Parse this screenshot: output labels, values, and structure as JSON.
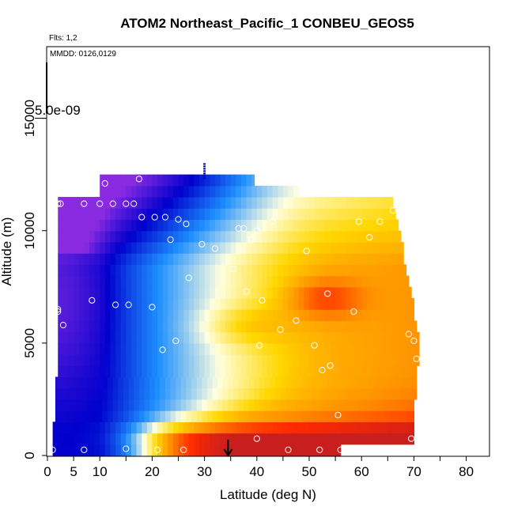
{
  "chart_data": {
    "type": "heatmap",
    "title": "ATOM2 Northeast_Pacific_1 CONBEU_GEOS5",
    "flights_note": "Flts: 1,2",
    "dates_note": "MMDD: 0126,0129",
    "xlabel": "Latitude (deg N)",
    "ylabel": "Altitude (m)",
    "xlim": [
      0,
      85
    ],
    "ylim": [
      0,
      18000
    ],
    "x_ticks": [
      0,
      5,
      10,
      20,
      30,
      40,
      50,
      60,
      70,
      80
    ],
    "x_minor_ticks": [
      15,
      25,
      35,
      45,
      55,
      65,
      75,
      85
    ],
    "y_ticks": [
      0,
      5000,
      10000,
      15000
    ],
    "colorbar_label": "5.0e-09",
    "colorbar_value_altitude": 15000,
    "marker_latitude": 34.5,
    "grid": false,
    "legend": "none",
    "colormap": [
      "#8a2be2",
      "#0000cd",
      "#1e90ff",
      "#ffffe0",
      "#ffd700",
      "#ff8c00",
      "#ff2a00",
      "#c81e1e"
    ],
    "colorbar_top_latitude": 30,
    "colorbar_top_altitude": [
      12300,
      13000
    ],
    "altitude_bins": [
      {
        "alt": 250,
        "lat": [
          1,
          56
        ]
      },
      {
        "alt": 750,
        "lat": [
          1,
          70
        ]
      },
      {
        "alt": 1250,
        "lat": [
          1,
          70
        ]
      },
      {
        "alt": 1750,
        "lat": [
          1.5,
          70
        ]
      },
      {
        "alt": 2250,
        "lat": [
          1.5,
          70
        ]
      },
      {
        "alt": 2750,
        "lat": [
          1.5,
          70.5
        ]
      },
      {
        "alt": 3250,
        "lat": [
          1.5,
          70.5
        ]
      },
      {
        "alt": 3750,
        "lat": [
          2,
          70.5
        ]
      },
      {
        "alt": 4250,
        "lat": [
          2,
          71
        ]
      },
      {
        "alt": 4750,
        "lat": [
          2,
          71
        ]
      },
      {
        "alt": 5250,
        "lat": [
          2,
          71
        ]
      },
      {
        "alt": 5750,
        "lat": [
          2,
          70.5
        ]
      },
      {
        "alt": 6250,
        "lat": [
          2,
          70
        ]
      },
      {
        "alt": 6750,
        "lat": [
          2,
          70
        ]
      },
      {
        "alt": 7250,
        "lat": [
          2,
          69.5
        ]
      },
      {
        "alt": 7750,
        "lat": [
          2,
          69
        ]
      },
      {
        "alt": 8250,
        "lat": [
          2,
          68.5
        ]
      },
      {
        "alt": 8750,
        "lat": [
          2,
          68
        ]
      },
      {
        "alt": 9250,
        "lat": [
          2,
          68
        ]
      },
      {
        "alt": 9750,
        "lat": [
          2,
          67.5
        ]
      },
      {
        "alt": 10250,
        "lat": [
          2,
          67
        ]
      },
      {
        "alt": 10750,
        "lat": [
          2,
          66.5
        ]
      },
      {
        "alt": 11250,
        "lat": [
          2,
          66
        ]
      },
      {
        "alt": 11750,
        "lat": [
          10,
          48
        ]
      },
      {
        "alt": 12250,
        "lat": [
          10,
          39.5
        ]
      }
    ],
    "observation_points": [
      [
        1,
        250
      ],
      [
        7,
        250
      ],
      [
        15,
        300
      ],
      [
        21,
        250
      ],
      [
        26,
        250
      ],
      [
        46,
        250
      ],
      [
        52,
        250
      ],
      [
        56,
        250
      ],
      [
        40,
        750
      ],
      [
        69.5,
        750
      ],
      [
        55.5,
        1800
      ],
      [
        52.5,
        3800
      ],
      [
        54,
        4000
      ],
      [
        70.5,
        4300
      ],
      [
        22,
        4700
      ],
      [
        24.5,
        5100
      ],
      [
        40.5,
        4900
      ],
      [
        51,
        4900
      ],
      [
        69,
        5400
      ],
      [
        70,
        5100
      ],
      [
        44.5,
        5600
      ],
      [
        47.5,
        6000
      ],
      [
        3,
        5800
      ],
      [
        58.5,
        6400
      ],
      [
        2,
        6400
      ],
      [
        2,
        6500
      ],
      [
        8.5,
        6900
      ],
      [
        13,
        6700
      ],
      [
        15.5,
        6700
      ],
      [
        20,
        6600
      ],
      [
        38,
        7300
      ],
      [
        41,
        6900
      ],
      [
        53.5,
        7200
      ],
      [
        27,
        7900
      ],
      [
        35.5,
        8300
      ],
      [
        32,
        9200
      ],
      [
        29.5,
        9400
      ],
      [
        23.5,
        9600
      ],
      [
        39,
        9600
      ],
      [
        49.5,
        9100
      ],
      [
        40,
        10000
      ],
      [
        37.5,
        10100
      ],
      [
        36.5,
        10100
      ],
      [
        43,
        10400
      ],
      [
        61.5,
        9700
      ],
      [
        59.5,
        10400
      ],
      [
        63.5,
        10400
      ],
      [
        18,
        10600
      ],
      [
        20.5,
        10600
      ],
      [
        22.5,
        10600
      ],
      [
        25,
        10500
      ],
      [
        26.5,
        10300
      ],
      [
        2,
        11200
      ],
      [
        2.5,
        11200
      ],
      [
        7,
        11200
      ],
      [
        10,
        11200
      ],
      [
        12.5,
        11200
      ],
      [
        15,
        11200
      ],
      [
        16.5,
        11200
      ],
      [
        66,
        10900
      ],
      [
        11,
        12100
      ],
      [
        17.5,
        12300
      ]
    ]
  }
}
